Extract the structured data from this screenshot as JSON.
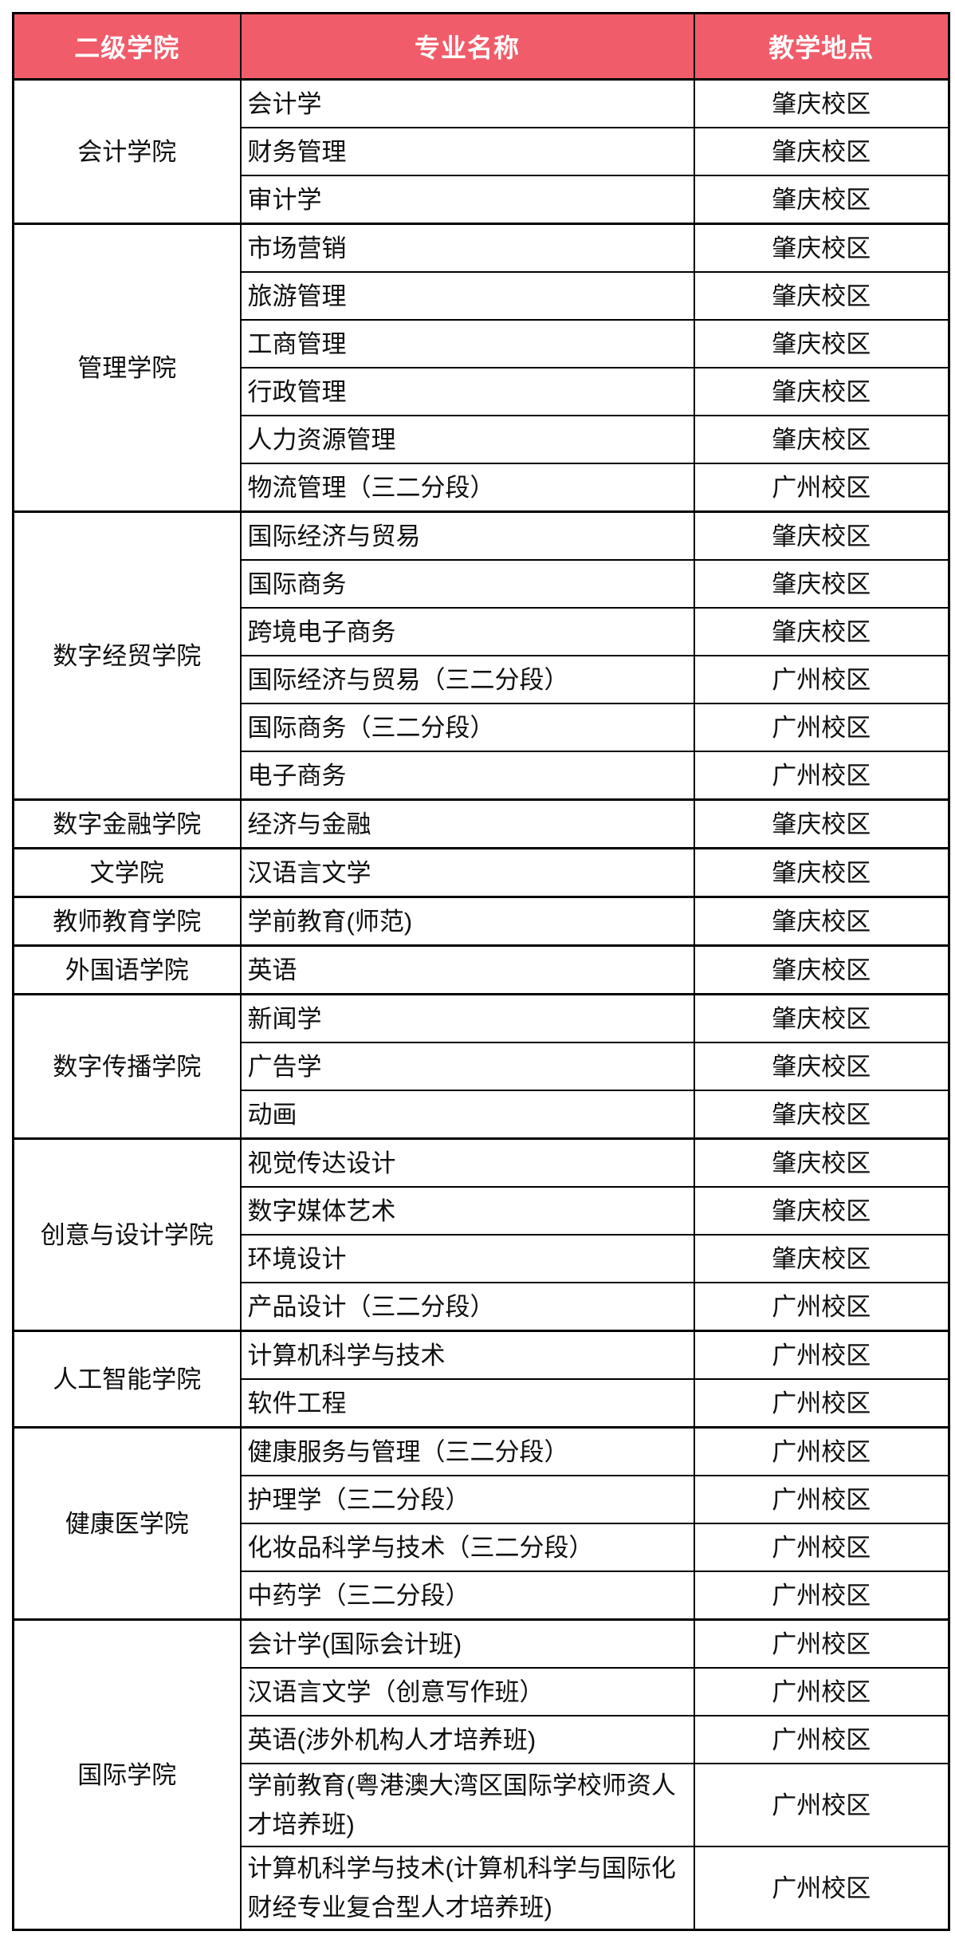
{
  "table": {
    "columns": [
      "二级学院",
      "专业名称",
      "教学地点"
    ],
    "highlight_campus": "广州校区",
    "colors": {
      "header_background": "#f15c6a",
      "header_text": "#ffffff",
      "default_text": "#0f0f0f",
      "highlight_text": "#e9405f",
      "border": "#000000"
    },
    "groups": [
      {
        "college": "会计学院",
        "majors": [
          {
            "name": "会计学",
            "campus": "肇庆校区"
          },
          {
            "name": "财务管理",
            "campus": "肇庆校区"
          },
          {
            "name": "审计学",
            "campus": "肇庆校区"
          }
        ]
      },
      {
        "college": "管理学院",
        "majors": [
          {
            "name": "市场营销",
            "campus": "肇庆校区"
          },
          {
            "name": "旅游管理",
            "campus": "肇庆校区"
          },
          {
            "name": "工商管理",
            "campus": "肇庆校区"
          },
          {
            "name": "行政管理",
            "campus": "肇庆校区"
          },
          {
            "name": "人力资源管理",
            "campus": "肇庆校区"
          },
          {
            "name": "物流管理（三二分段）",
            "campus": "广州校区"
          }
        ]
      },
      {
        "college": "数字经贸学院",
        "majors": [
          {
            "name": "国际经济与贸易",
            "campus": "肇庆校区"
          },
          {
            "name": "国际商务",
            "campus": "肇庆校区"
          },
          {
            "name": "跨境电子商务",
            "campus": "肇庆校区"
          },
          {
            "name": "国际经济与贸易（三二分段）",
            "campus": "广州校区"
          },
          {
            "name": "国际商务（三二分段）",
            "campus": "广州校区"
          },
          {
            "name": "电子商务",
            "campus": "广州校区"
          }
        ]
      },
      {
        "college": "数字金融学院",
        "majors": [
          {
            "name": "经济与金融",
            "campus": "肇庆校区"
          }
        ]
      },
      {
        "college": "文学院",
        "majors": [
          {
            "name": "汉语言文学",
            "campus": "肇庆校区"
          }
        ]
      },
      {
        "college": "教师教育学院",
        "majors": [
          {
            "name": "学前教育(师范)",
            "campus": "肇庆校区"
          }
        ]
      },
      {
        "college": "外国语学院",
        "majors": [
          {
            "name": "英语",
            "campus": "肇庆校区"
          }
        ]
      },
      {
        "college": "数字传播学院",
        "majors": [
          {
            "name": "新闻学",
            "campus": "肇庆校区"
          },
          {
            "name": "广告学",
            "campus": "肇庆校区"
          },
          {
            "name": "动画",
            "campus": "肇庆校区"
          }
        ]
      },
      {
        "college": "创意与设计学院",
        "majors": [
          {
            "name": "视觉传达设计",
            "campus": "肇庆校区"
          },
          {
            "name": "数字媒体艺术",
            "campus": "肇庆校区"
          },
          {
            "name": "环境设计",
            "campus": "肇庆校区"
          },
          {
            "name": "产品设计（三二分段）",
            "campus": "广州校区"
          }
        ]
      },
      {
        "college": "人工智能学院",
        "majors": [
          {
            "name": "计算机科学与技术",
            "campus": "广州校区"
          },
          {
            "name": "软件工程",
            "campus": "广州校区"
          }
        ]
      },
      {
        "college": "健康医学院",
        "majors": [
          {
            "name": "健康服务与管理（三二分段）",
            "campus": "广州校区"
          },
          {
            "name": "护理学（三二分段）",
            "campus": "广州校区"
          },
          {
            "name": "化妆品科学与技术（三二分段）",
            "campus": "广州校区"
          },
          {
            "name": "中药学（三二分段）",
            "campus": "广州校区"
          }
        ]
      },
      {
        "college": "国际学院",
        "majors": [
          {
            "name": "会计学(国际会计班)",
            "campus": "广州校区"
          },
          {
            "name": "汉语言文学（创意写作班）",
            "campus": "广州校区"
          },
          {
            "name": "英语(涉外机构人才培养班)",
            "campus": "广州校区"
          },
          {
            "name": "学前教育(粤港澳大湾区国际学校师资人才培养班)",
            "campus": "广州校区"
          },
          {
            "name": "计算机科学与技术(计算机科学与国际化财经专业复合型人才培养班)",
            "campus": "广州校区"
          }
        ]
      }
    ]
  }
}
